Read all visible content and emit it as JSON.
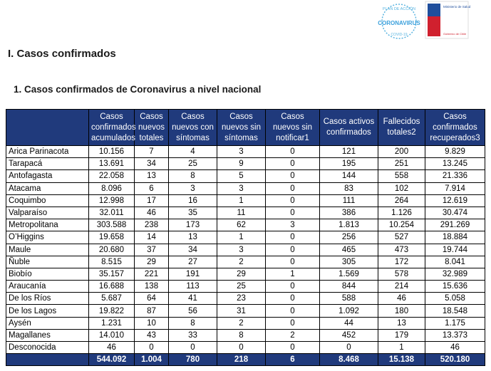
{
  "header": {
    "logo_top": "PLAN DE ACCIÓN",
    "logo_main": "CORONAVIRUS",
    "logo_sub": "COVID-19",
    "ministry": "Ministerio de Salud",
    "government": "Gobierno de Chile"
  },
  "title": "I. Casos confirmados",
  "subtitle": "1. Casos confirmados de Coronavirus a nivel nacional",
  "table": {
    "columns": [
      "Casos confirmados acumulados",
      "Casos nuevos totales",
      "Casos nuevos con síntomas",
      "Casos nuevos sin síntomas",
      "Casos nuevos sin notificar1",
      "Casos activos confirmados",
      "Fallecidos totales2",
      "Casos confirmados recuperados3"
    ],
    "rows": [
      [
        "Arica Parinacota",
        "10.156",
        "7",
        "4",
        "3",
        "0",
        "121",
        "200",
        "9.829"
      ],
      [
        "Tarapacá",
        "13.691",
        "34",
        "25",
        "9",
        "0",
        "195",
        "251",
        "13.245"
      ],
      [
        "Antofagasta",
        "22.058",
        "13",
        "8",
        "5",
        "0",
        "144",
        "558",
        "21.336"
      ],
      [
        "Atacama",
        "8.096",
        "6",
        "3",
        "3",
        "0",
        "83",
        "102",
        "7.914"
      ],
      [
        "Coquimbo",
        "12.998",
        "17",
        "16",
        "1",
        "0",
        "111",
        "264",
        "12.619"
      ],
      [
        "Valparaíso",
        "32.011",
        "46",
        "35",
        "11",
        "0",
        "386",
        "1.126",
        "30.474"
      ],
      [
        "Metropolitana",
        "303.588",
        "238",
        "173",
        "62",
        "3",
        "1.813",
        "10.254",
        "291.269"
      ],
      [
        "O’Higgins",
        "19.658",
        "14",
        "13",
        "1",
        "0",
        "256",
        "527",
        "18.884"
      ],
      [
        "Maule",
        "20.680",
        "37",
        "34",
        "3",
        "0",
        "465",
        "473",
        "19.744"
      ],
      [
        "Ñuble",
        "8.515",
        "29",
        "27",
        "2",
        "0",
        "305",
        "172",
        "8.041"
      ],
      [
        "Biobío",
        "35.157",
        "221",
        "191",
        "29",
        "1",
        "1.569",
        "578",
        "32.989"
      ],
      [
        "Araucanía",
        "16.688",
        "138",
        "113",
        "25",
        "0",
        "844",
        "214",
        "15.636"
      ],
      [
        "De los Ríos",
        "5.687",
        "64",
        "41",
        "23",
        "0",
        "588",
        "46",
        "5.058"
      ],
      [
        "De los Lagos",
        "19.822",
        "87",
        "56",
        "31",
        "0",
        "1.092",
        "180",
        "18.548"
      ],
      [
        "Aysén",
        "1.231",
        "10",
        "8",
        "2",
        "0",
        "44",
        "13",
        "1.175"
      ],
      [
        "Magallanes",
        "14.010",
        "43",
        "33",
        "8",
        "2",
        "452",
        "179",
        "13.373"
      ],
      [
        "Desconocida",
        "46",
        "0",
        "0",
        "0",
        "0",
        "0",
        "1",
        "46"
      ]
    ],
    "totals": [
      "544.092",
      "1.004",
      "780",
      "218",
      "6",
      "8.468",
      "15.138",
      "520.180"
    ]
  }
}
